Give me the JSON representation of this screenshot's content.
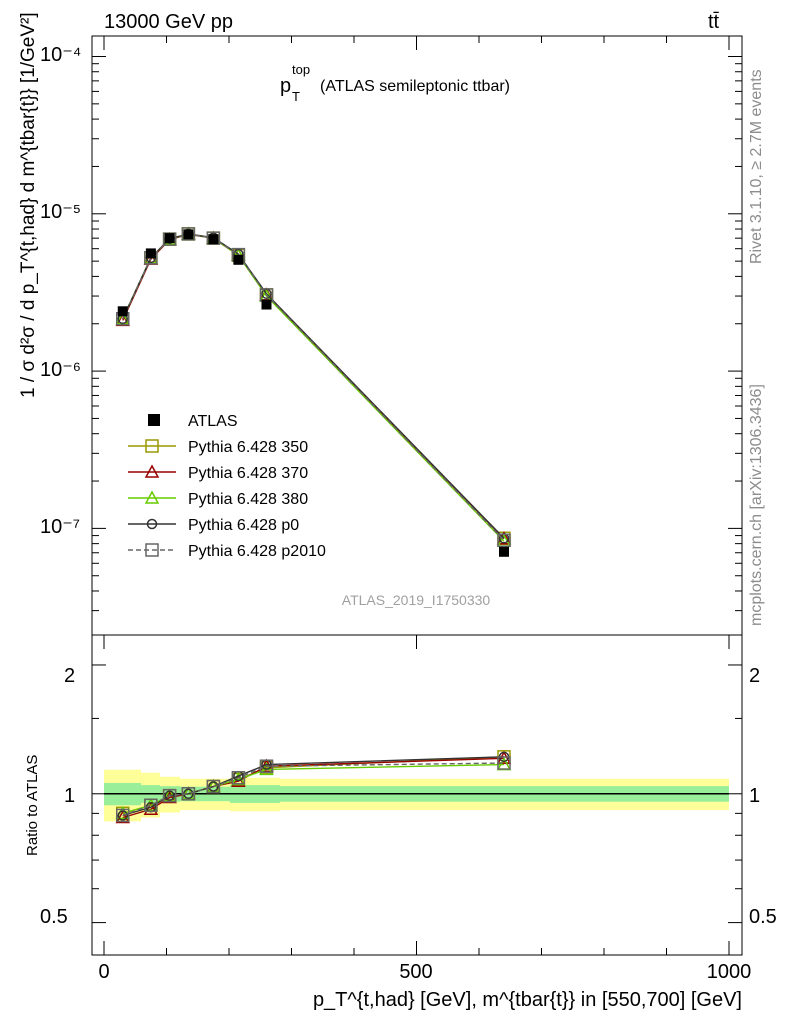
{
  "header": {
    "left": "13000 GeV pp",
    "right": "tt̄",
    "plot_title_main": "p",
    "plot_title_sup": "top",
    "plot_title_sub": "T",
    "plot_title_rest": "(ATLAS semileptonic ttbar)",
    "analysis_id": "ATLAS_2019_I1750330"
  },
  "side": {
    "rivet": "Rivet 3.1.10, ≥ 2.7M events",
    "mcplots": "mcplots.cern.ch [arXiv:1306.3436]"
  },
  "axes": {
    "ylabel_main": "1 / σ d²σ / d p_T^{t,had} d m^{tbar{t}} [1/GeV²]",
    "ylabel_ratio": "Ratio to ATLAS",
    "xlabel": "p_T^{t,had} [GeV], m^{tbar{t}} in [550,700] [GeV]",
    "x_ticks": [
      "0",
      "500",
      "1000"
    ],
    "y_ticks_main": [
      "10⁻⁷",
      "10⁻⁶",
      "10⁻⁵",
      "10⁻⁴"
    ],
    "y_ticks_ratio": [
      "0.5",
      "1",
      "2"
    ]
  },
  "legend": [
    {
      "name": "ATLAS",
      "color": "#000000",
      "marker": "square-filled",
      "dash": false
    },
    {
      "name": "Pythia 6.428 350",
      "color": "#999900",
      "marker": "square-open",
      "dash": false
    },
    {
      "name": "Pythia 6.428 370",
      "color": "#990000",
      "marker": "triangle-open",
      "dash": false
    },
    {
      "name": "Pythia 6.428 380",
      "color": "#66cc00",
      "marker": "triangle-open",
      "dash": false
    },
    {
      "name": "Pythia 6.428 p0",
      "color": "#333333",
      "marker": "circle-open",
      "dash": false
    },
    {
      "name": "Pythia 6.428 p2010",
      "color": "#666666",
      "marker": "square-open",
      "dash": true
    }
  ],
  "chart_data": {
    "type": "line",
    "scale": "log",
    "xlim": [
      -20,
      1020
    ],
    "ylim": [
      2.1e-08,
      0.000135
    ],
    "ratio_ylim": [
      0.42,
      2.35
    ],
    "x": [
      30,
      75,
      105,
      135,
      175,
      215,
      260,
      640
    ],
    "data": {
      "name": "ATLAS",
      "values": [
        2.4e-06,
        5.6e-06,
        7e-06,
        7.4e-06,
        6.9e-06,
        5.1e-06,
        2.65e-06,
        7.1e-08
      ],
      "band_stat_halfwidth": 0.06,
      "band_total_halfwidth": 0.12
    },
    "series": [
      {
        "name": "Pythia 6.428 350",
        "values": [
          2.15e-06,
          5.25e-06,
          6.9e-06,
          7.45e-06,
          7e-06,
          5.45e-06,
          3.05e-06,
          8.65e-08
        ],
        "ratio": [
          0.9,
          0.94,
          0.99,
          1.0,
          1.04,
          1.08,
          1.15,
          1.22
        ]
      },
      {
        "name": "Pythia 6.428 370",
        "values": [
          2.1e-06,
          5.15e-06,
          6.85e-06,
          7.4e-06,
          7e-06,
          5.45e-06,
          3.05e-06,
          8.6e-08
        ],
        "ratio": [
          0.88,
          0.92,
          0.98,
          1.0,
          1.04,
          1.07,
          1.16,
          1.21
        ]
      },
      {
        "name": "Pythia 6.428 380",
        "values": [
          2.15e-06,
          5.25e-06,
          6.9e-06,
          7.45e-06,
          7e-06,
          5.45e-06,
          3e-06,
          8.3e-08
        ],
        "ratio": [
          0.9,
          0.94,
          0.99,
          1.0,
          1.04,
          1.08,
          1.14,
          1.17
        ]
      },
      {
        "name": "Pythia 6.428 p0",
        "values": [
          2.15e-06,
          5.25e-06,
          6.95e-06,
          7.45e-06,
          7.05e-06,
          5.55e-06,
          3.1e-06,
          8.65e-08
        ],
        "ratio": [
          0.89,
          0.93,
          0.99,
          1.0,
          1.04,
          1.1,
          1.17,
          1.22
        ]
      },
      {
        "name": "Pythia 6.428 p2010",
        "values": [
          2.15e-06,
          5.25e-06,
          6.9e-06,
          7.45e-06,
          7e-06,
          5.5e-06,
          3.05e-06,
          8.4e-08
        ],
        "ratio": [
          0.89,
          0.94,
          0.99,
          1.0,
          1.04,
          1.09,
          1.16,
          1.18
        ]
      }
    ]
  }
}
